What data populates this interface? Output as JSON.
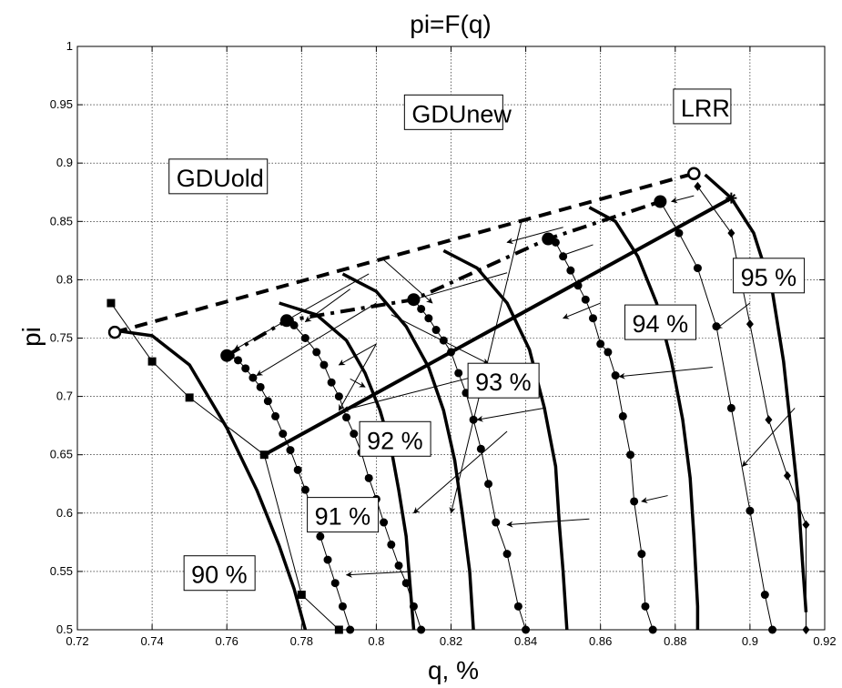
{
  "chart_data": {
    "type": "line",
    "title": "pi=F(q)",
    "xlabel": "q, %",
    "ylabel": "pi",
    "xlim": [
      0.72,
      0.92
    ],
    "ylim": [
      0.5,
      1.0
    ],
    "grid": true,
    "xticks": [
      0.72,
      0.74,
      0.76,
      0.78,
      0.8,
      0.82,
      0.84,
      0.86,
      0.88,
      0.9,
      0.92
    ],
    "xtick_labels": [
      "0.72",
      "0.74",
      "0.76",
      "0.78",
      "0.8",
      "0.82",
      "0.84",
      "0.86",
      "0.88",
      "0.9",
      "0.92"
    ],
    "yticks": [
      0.5,
      0.55,
      0.6,
      0.65,
      0.7,
      0.75,
      0.8,
      0.85,
      0.9,
      0.95,
      1.0
    ],
    "ytick_labels": [
      "0.5",
      "0.55",
      "0.6",
      "0.65",
      "0.7",
      "0.75",
      "0.8",
      "0.85",
      "0.9",
      "0.95",
      "1"
    ],
    "efficiency_curves": [
      {
        "label": "90 %",
        "label_at": [
          0.75,
          0.54
        ],
        "points": [
          [
            0.729,
            0.757
          ],
          [
            0.74,
            0.752
          ],
          [
            0.75,
            0.727
          ],
          [
            0.76,
            0.673
          ],
          [
            0.768,
            0.62
          ],
          [
            0.774,
            0.572
          ],
          [
            0.778,
            0.535
          ],
          [
            0.781,
            0.5
          ]
        ]
      },
      {
        "label": "91 %",
        "label_at": [
          0.783,
          0.59
        ],
        "points": [
          [
            0.774,
            0.78
          ],
          [
            0.784,
            0.77
          ],
          [
            0.792,
            0.748
          ],
          [
            0.797,
            0.72
          ],
          [
            0.801,
            0.688
          ],
          [
            0.804,
            0.655
          ],
          [
            0.806,
            0.62
          ],
          [
            0.808,
            0.58
          ],
          [
            0.809,
            0.54
          ],
          [
            0.81,
            0.5
          ]
        ]
      },
      {
        "label": "92 %",
        "label_at": [
          0.797,
          0.655
        ],
        "points": [
          [
            0.791,
            0.805
          ],
          [
            0.8,
            0.79
          ],
          [
            0.808,
            0.76
          ],
          [
            0.814,
            0.725
          ],
          [
            0.818,
            0.688
          ],
          [
            0.821,
            0.645
          ],
          [
            0.823,
            0.6
          ],
          [
            0.825,
            0.55
          ],
          [
            0.826,
            0.5
          ]
        ]
      },
      {
        "label": "93 %",
        "label_at": [
          0.826,
          0.705
        ],
        "points": [
          [
            0.818,
            0.825
          ],
          [
            0.827,
            0.81
          ],
          [
            0.835,
            0.78
          ],
          [
            0.841,
            0.74
          ],
          [
            0.845,
            0.69
          ],
          [
            0.848,
            0.64
          ],
          [
            0.849,
            0.59
          ],
          [
            0.85,
            0.55
          ],
          [
            0.851,
            0.5
          ]
        ]
      },
      {
        "label": "94 %",
        "label_at": [
          0.868,
          0.755
        ],
        "points": [
          [
            0.857,
            0.862
          ],
          [
            0.864,
            0.85
          ],
          [
            0.87,
            0.82
          ],
          [
            0.875,
            0.78
          ],
          [
            0.879,
            0.73
          ],
          [
            0.882,
            0.68
          ],
          [
            0.884,
            0.63
          ],
          [
            0.885,
            0.58
          ],
          [
            0.886,
            0.52
          ],
          [
            0.886,
            0.5
          ]
        ]
      },
      {
        "label": "95 %",
        "label_at": [
          0.897,
          0.795
        ],
        "points": [
          [
            0.888,
            0.89
          ],
          [
            0.895,
            0.87
          ],
          [
            0.901,
            0.84
          ],
          [
            0.906,
            0.79
          ],
          [
            0.909,
            0.73
          ],
          [
            0.911,
            0.67
          ],
          [
            0.913,
            0.61
          ],
          [
            0.914,
            0.56
          ],
          [
            0.915,
            0.515
          ]
        ]
      }
    ],
    "speed_lines": [
      {
        "marker": "square",
        "points": [
          [
            0.729,
            0.78
          ],
          [
            0.74,
            0.73
          ],
          [
            0.75,
            0.699
          ],
          [
            0.77,
            0.65
          ],
          [
            0.78,
            0.53
          ],
          [
            0.79,
            0.5
          ]
        ]
      },
      {
        "marker": "circle",
        "points": [
          [
            0.761,
            0.735
          ],
          [
            0.763,
            0.731
          ],
          [
            0.765,
            0.724
          ],
          [
            0.767,
            0.716
          ],
          [
            0.769,
            0.708
          ],
          [
            0.771,
            0.696
          ],
          [
            0.773,
            0.683
          ],
          [
            0.775,
            0.668
          ],
          [
            0.777,
            0.654
          ],
          [
            0.779,
            0.637
          ],
          [
            0.781,
            0.62
          ],
          [
            0.783,
            0.6
          ],
          [
            0.785,
            0.58
          ],
          [
            0.787,
            0.56
          ],
          [
            0.789,
            0.54
          ],
          [
            0.791,
            0.52
          ],
          [
            0.793,
            0.5
          ]
        ]
      },
      {
        "marker": "circle",
        "points": [
          [
            0.776,
            0.765
          ],
          [
            0.778,
            0.761
          ],
          [
            0.781,
            0.75
          ],
          [
            0.784,
            0.738
          ],
          [
            0.786,
            0.727
          ],
          [
            0.788,
            0.712
          ],
          [
            0.79,
            0.7
          ],
          [
            0.792,
            0.682
          ],
          [
            0.794,
            0.668
          ],
          [
            0.796,
            0.652
          ],
          [
            0.798,
            0.63
          ],
          [
            0.8,
            0.612
          ],
          [
            0.802,
            0.592
          ],
          [
            0.804,
            0.573
          ],
          [
            0.806,
            0.555
          ],
          [
            0.808,
            0.54
          ],
          [
            0.81,
            0.52
          ],
          [
            0.812,
            0.5
          ]
        ]
      },
      {
        "marker": "circle",
        "points": [
          [
            0.81,
            0.783
          ],
          [
            0.812,
            0.775
          ],
          [
            0.814,
            0.767
          ],
          [
            0.816,
            0.757
          ],
          [
            0.818,
            0.748
          ],
          [
            0.82,
            0.738
          ],
          [
            0.822,
            0.72
          ],
          [
            0.824,
            0.703
          ],
          [
            0.826,
            0.68
          ],
          [
            0.828,
            0.655
          ],
          [
            0.83,
            0.625
          ],
          [
            0.832,
            0.592
          ],
          [
            0.835,
            0.565
          ],
          [
            0.838,
            0.52
          ],
          [
            0.84,
            0.5
          ]
        ]
      },
      {
        "marker": "circle",
        "points": [
          [
            0.846,
            0.835
          ],
          [
            0.848,
            0.832
          ],
          [
            0.85,
            0.82
          ],
          [
            0.852,
            0.808
          ],
          [
            0.854,
            0.795
          ],
          [
            0.856,
            0.783
          ],
          [
            0.858,
            0.767
          ],
          [
            0.86,
            0.745
          ],
          [
            0.862,
            0.738
          ],
          [
            0.864,
            0.718
          ],
          [
            0.866,
            0.683
          ],
          [
            0.868,
            0.65
          ],
          [
            0.869,
            0.61
          ],
          [
            0.871,
            0.565
          ],
          [
            0.872,
            0.52
          ],
          [
            0.874,
            0.5
          ]
        ]
      },
      {
        "marker": "circle",
        "points": [
          [
            0.876,
            0.867
          ],
          [
            0.881,
            0.84
          ],
          [
            0.886,
            0.81
          ],
          [
            0.891,
            0.76
          ],
          [
            0.895,
            0.69
          ],
          [
            0.9,
            0.602
          ],
          [
            0.904,
            0.53
          ],
          [
            0.906,
            0.5
          ]
        ]
      },
      {
        "marker": "diamond",
        "points": [
          [
            0.886,
            0.88
          ],
          [
            0.895,
            0.84
          ],
          [
            0.9,
            0.762
          ],
          [
            0.905,
            0.68
          ],
          [
            0.91,
            0.632
          ],
          [
            0.915,
            0.59
          ],
          [
            0.915,
            0.5
          ]
        ]
      }
    ],
    "limit_lines": [
      {
        "name": "GDUold",
        "style": "dashed",
        "points": [
          [
            0.73,
            0.755
          ],
          [
            0.885,
            0.891
          ]
        ]
      },
      {
        "name": "GDUnew",
        "style": "dashdot",
        "points": [
          [
            0.76,
            0.735
          ],
          [
            0.776,
            0.765
          ],
          [
            0.81,
            0.783
          ],
          [
            0.846,
            0.835
          ],
          [
            0.876,
            0.867
          ]
        ]
      },
      {
        "name": "LRR",
        "style": "solid",
        "points": [
          [
            0.77,
            0.65
          ],
          [
            0.895,
            0.87
          ]
        ]
      }
    ],
    "limit_markers": [
      {
        "shape": "open-circle",
        "point": [
          0.73,
          0.755
        ]
      },
      {
        "shape": "open-circle",
        "point": [
          0.885,
          0.891
        ]
      },
      {
        "shape": "filled-circle",
        "point": [
          0.76,
          0.735
        ]
      },
      {
        "shape": "filled-circle",
        "point": [
          0.776,
          0.765
        ]
      },
      {
        "shape": "filled-circle",
        "point": [
          0.81,
          0.783
        ]
      },
      {
        "shape": "filled-circle",
        "point": [
          0.846,
          0.835
        ]
      },
      {
        "shape": "filled-circle",
        "point": [
          0.876,
          0.867
        ]
      },
      {
        "shape": "star",
        "point": [
          0.895,
          0.87
        ]
      }
    ],
    "line_labels": [
      {
        "text": "GDUold",
        "at": [
          0.746,
          0.88
        ]
      },
      {
        "text": "GDUnew",
        "at": [
          0.809,
          0.935
        ]
      },
      {
        "text": "LRR",
        "at": [
          0.881,
          0.94
        ]
      }
    ],
    "annotation_arrows": [
      {
        "from": [
          0.798,
          0.805
        ],
        "to": [
          0.762,
          0.74
        ]
      },
      {
        "from": [
          0.8,
          0.78
        ],
        "to": [
          0.768,
          0.718
        ]
      },
      {
        "from": [
          0.793,
          0.792
        ],
        "to": [
          0.781,
          0.764
        ]
      },
      {
        "from": [
          0.8,
          0.745
        ],
        "to": [
          0.79,
          0.727
        ]
      },
      {
        "from": [
          0.835,
          0.806
        ],
        "to": [
          0.81,
          0.783
        ]
      },
      {
        "from": [
          0.85,
          0.845
        ],
        "to": [
          0.835,
          0.832
        ]
      },
      {
        "from": [
          0.858,
          0.83
        ],
        "to": [
          0.849,
          0.82
        ]
      },
      {
        "from": [
          0.885,
          0.872
        ],
        "to": [
          0.879,
          0.867
        ]
      },
      {
        "from": [
          0.8,
          0.745
        ],
        "to": [
          0.79,
          0.688
        ]
      },
      {
        "from": [
          0.835,
          0.67
        ],
        "to": [
          0.81,
          0.6
        ]
      },
      {
        "from": [
          0.845,
          0.69
        ],
        "to": [
          0.827,
          0.68
        ]
      },
      {
        "from": [
          0.857,
          0.595
        ],
        "to": [
          0.835,
          0.59
        ]
      },
      {
        "from": [
          0.86,
          0.78
        ],
        "to": [
          0.85,
          0.767
        ]
      },
      {
        "from": [
          0.89,
          0.725
        ],
        "to": [
          0.865,
          0.717
        ]
      },
      {
        "from": [
          0.878,
          0.615
        ],
        "to": [
          0.871,
          0.61
        ]
      },
      {
        "from": [
          0.9,
          0.78
        ],
        "to": [
          0.891,
          0.758
        ]
      },
      {
        "from": [
          0.912,
          0.69
        ],
        "to": [
          0.898,
          0.64
        ]
      },
      {
        "from": [
          0.81,
          0.55
        ],
        "to": [
          0.792,
          0.547
        ]
      },
      {
        "from": [
          0.83,
          0.72
        ],
        "to": [
          0.791,
          0.688
        ]
      },
      {
        "from": [
          0.839,
          0.852
        ],
        "to": [
          0.82,
          0.6
        ]
      },
      {
        "from": [
          0.804,
          0.77
        ],
        "to": [
          0.83,
          0.728
        ]
      },
      {
        "from": [
          0.793,
          0.715
        ],
        "to": [
          0.797,
          0.708
        ]
      },
      {
        "from": [
          0.802,
          0.817
        ],
        "to": [
          0.815,
          0.78
        ]
      }
    ]
  }
}
